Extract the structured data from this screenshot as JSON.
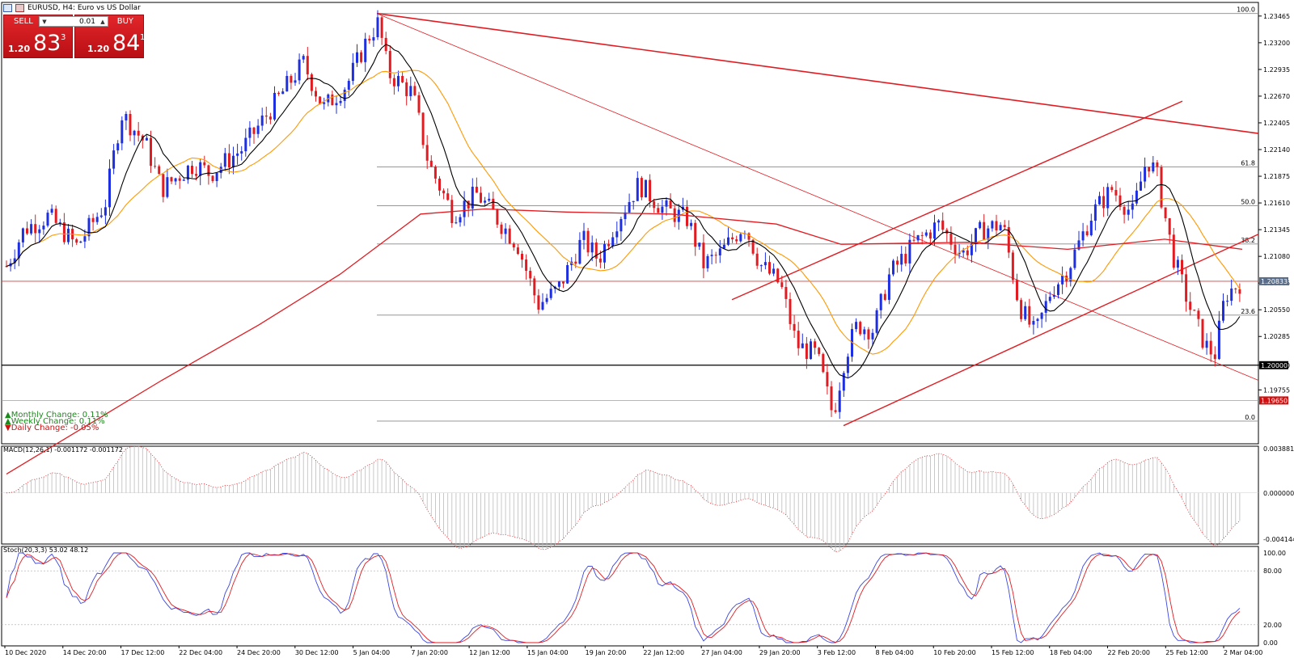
{
  "window": {
    "title": "EURUSD, H4:  Euro vs US Dollar",
    "symbol_icon": "chart-window-icon"
  },
  "trade_panel": {
    "sell_label": "SELL",
    "buy_label": "BUY",
    "lot_size": "0.01",
    "sell_price": {
      "prefix": "1.20",
      "big": "83",
      "sup": "3"
    },
    "buy_price": {
      "prefix": "1.20",
      "big": "84",
      "sup": "1"
    },
    "colors": {
      "sell": "#d91b20",
      "buy": "#d91b20"
    }
  },
  "changes": {
    "monthly": "Monthly Change: 0.11%",
    "weekly": "Weekly Change: 0.11%",
    "daily": "Daily Change: -0.05%"
  },
  "price_axis": {
    "ticks": [
      "1.23465",
      "1.23200",
      "1.22935",
      "1.22670",
      "1.22405",
      "1.22140",
      "1.21875",
      "1.21610",
      "1.21345",
      "1.21080",
      "1.20815",
      "1.20550",
      "1.20285",
      "1.20000",
      "1.19755"
    ],
    "current_price": "1.20833",
    "level_1": "1.20000",
    "level_2": "1.19650"
  },
  "fibonacci": {
    "levels": [
      {
        "label": "100.0",
        "price": 1.2349
      },
      {
        "label": "61.8",
        "price": 1.21968
      },
      {
        "label": "50.0",
        "price": 1.21583
      },
      {
        "label": "38.2",
        "price": 1.21203
      },
      {
        "label": "23.6",
        "price": 1.20497
      },
      {
        "label": "0.0",
        "price": 1.19445
      }
    ]
  },
  "time_axis": {
    "labels": [
      "10 Dec 2020",
      "14 Dec 20:00",
      "17 Dec 12:00",
      "22 Dec 04:00",
      "24 Dec 20:00",
      "30 Dec 12:00",
      "5 Jan 04:00",
      "7 Jan 20:00",
      "12 Jan 12:00",
      "15 Jan 04:00",
      "19 Jan 20:00",
      "22 Jan 12:00",
      "27 Jan 04:00",
      "29 Jan 20:00",
      "3 Feb 12:00",
      "8 Feb 04:00",
      "10 Feb 20:00",
      "15 Feb 12:00",
      "18 Feb 04:00",
      "22 Feb 20:00",
      "25 Feb 12:00",
      "2 Mar 04:00"
    ]
  },
  "macd": {
    "label": "MACD(12,26,1) -0.001172 -0.001172",
    "ticks": [
      "0.003881",
      "0.000000",
      "-0.004144"
    ]
  },
  "stoch": {
    "label": "Stoch(20,3,3) 53.02 48.12",
    "ticks": [
      "100.00",
      "80.00",
      "20.00",
      "0.00"
    ]
  },
  "colors": {
    "bull_candle": "#1d2fe0",
    "bear_candle": "#e01c22",
    "ma_fast": "#000000",
    "ma_mid": "#ff9900",
    "ma_slow": "#e01c22",
    "trendline": "#e01c22",
    "stoch_main": "#3b46e0",
    "stoch_signal": "#e01c22"
  }
}
